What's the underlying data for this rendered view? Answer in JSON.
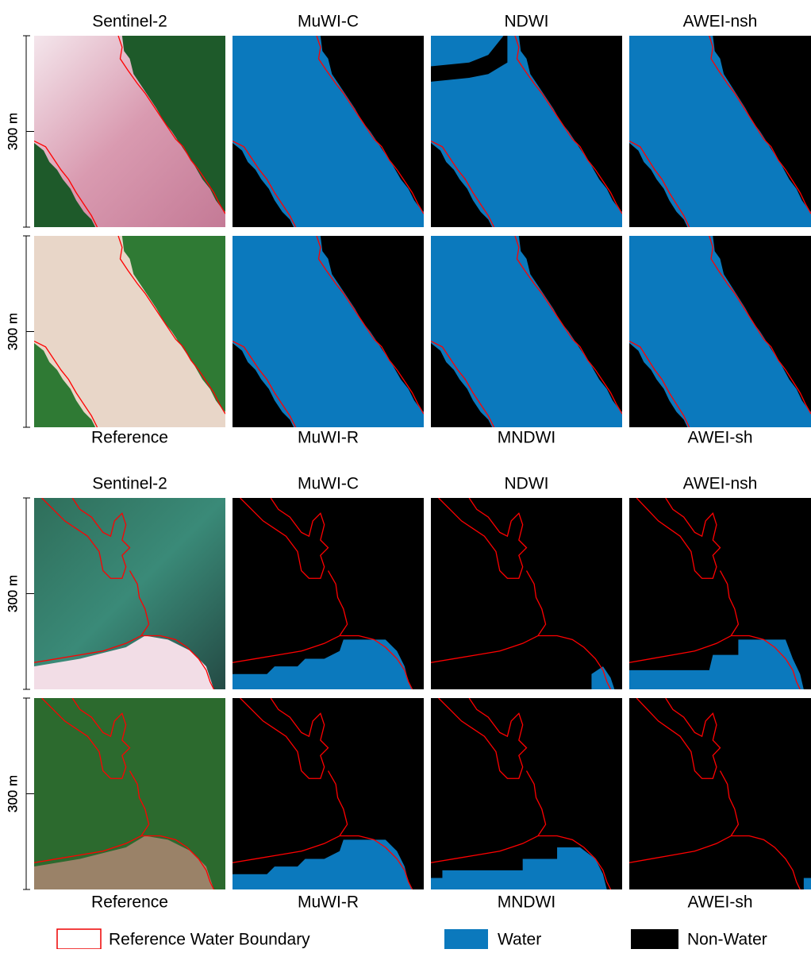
{
  "blocks": [
    {
      "top_labels": [
        "Sentinel-2",
        "MuWI-C",
        "NDWI",
        "AWEI-nsh"
      ],
      "bottom_labels": [
        "Reference",
        "MuWI-R",
        "MNDWI",
        "AWEI-sh"
      ],
      "scale_labels": [
        "300 m",
        "300 m"
      ]
    },
    {
      "top_labels": [
        "Sentinel-2",
        "MuWI-C",
        "NDWI",
        "AWEI-nsh"
      ],
      "bottom_labels": [
        "Reference",
        "MuWI-R",
        "MNDWI",
        "AWEI-sh"
      ],
      "scale_labels": [
        "300 m",
        "300 m"
      ]
    }
  ],
  "legend": [
    "Reference Water Boundary",
    "Water",
    "Non-Water"
  ]
}
